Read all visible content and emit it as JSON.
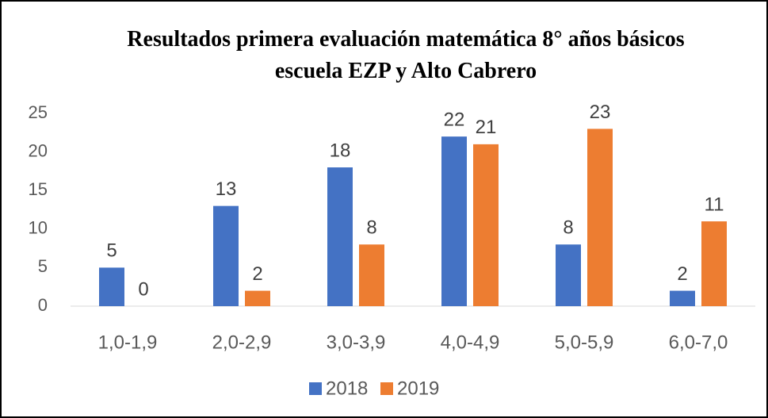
{
  "chart_data": {
    "type": "bar",
    "title": "Resultados primera evaluación matemática 8° años básicos escuela EZP y Alto Cabrero",
    "categories": [
      "1,0-1,9",
      "2,0-2,9",
      "3,0-3,9",
      "4,0-4,9",
      "5,0-5,9",
      "6,0-7,0"
    ],
    "series": [
      {
        "name": "2018",
        "color": "#4472c4",
        "values": [
          5,
          13,
          18,
          22,
          8,
          2
        ]
      },
      {
        "name": "2019",
        "color": "#ed7d31",
        "values": [
          0,
          2,
          8,
          21,
          23,
          11
        ]
      }
    ],
    "ylim": [
      0,
      25
    ],
    "yticks": [
      0,
      5,
      10,
      15,
      20,
      25
    ],
    "grid": false,
    "legend": "bottom"
  }
}
